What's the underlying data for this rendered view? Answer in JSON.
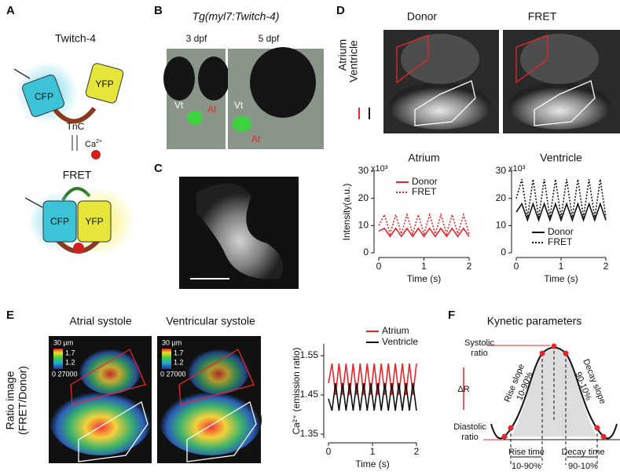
{
  "panels": {
    "a": {
      "letter": "A",
      "title": "Twitch-4",
      "cfp": "CFP",
      "yfp": "YFP",
      "tnc": "TnC",
      "ca": "Ca",
      "ca_sup": "2+",
      "fret": "FRET"
    },
    "b": {
      "letter": "B",
      "title": "Tg(myl7:Twitch-4)",
      "d3": "3 dpf",
      "d5": "5 dpf",
      "vt": "Vt",
      "at": "At"
    },
    "c": {
      "letter": "C"
    },
    "d": {
      "letter": "D",
      "donor": "Donor",
      "fret": "FRET",
      "atrium": "Atrium",
      "ventricle": "Ventricle"
    },
    "e": {
      "letter": "E",
      "atrial": "Atrial systole",
      "ventricular": "Ventricular systole",
      "ratio1": "Ratio image",
      "ratio2": "(FRET/Donor)",
      "scale": "30 µm",
      "cmax": "1.7",
      "cmid": "1.2",
      "crange": "0 27000"
    },
    "f": {
      "letter": "F",
      "title": "Kynetic parameters",
      "systolic": [
        "Systolic",
        "ratio"
      ],
      "dr": "ΔR",
      "diastolic": [
        "Diastolic",
        "ratio"
      ],
      "rise_slope": [
        "Rise slope",
        "10-90%"
      ],
      "decay_slope": [
        "Decay slope",
        "90-10%"
      ],
      "rise_time": [
        "Rise time",
        "10-90%"
      ],
      "decay_time": [
        "Decay time",
        "90-10%"
      ]
    }
  },
  "chart_data": [
    {
      "type": "line",
      "title": "Atrium",
      "y_label": "Intensity(a.u.)",
      "y_multiplier": "x10³",
      "x_label": "Time (s)",
      "x": [
        0,
        0.125,
        0.25,
        0.375,
        0.5,
        0.625,
        0.75,
        0.875,
        1,
        1.125,
        1.25,
        1.375,
        1.5,
        1.625,
        1.75,
        1.875,
        2
      ],
      "series": [
        {
          "name": "Donor",
          "color": "#e8262a",
          "dash": "solid",
          "values": [
            8,
            9,
            6,
            9,
            6,
            9,
            6,
            9,
            6,
            9,
            6,
            9,
            6,
            9,
            6,
            9,
            6
          ]
        },
        {
          "name": "FRET",
          "color": "#e8262a",
          "dash": "dotted",
          "values": [
            10,
            14,
            7,
            14,
            7,
            14,
            7,
            14,
            7,
            14,
            7,
            14,
            7,
            14,
            7,
            14,
            7
          ]
        }
      ],
      "xlim": [
        0,
        2
      ],
      "ylim": [
        0,
        30
      ],
      "xticks": [
        0,
        1,
        2
      ],
      "yticks": [
        0,
        10,
        20,
        30
      ],
      "legend": "upper right"
    },
    {
      "type": "line",
      "title": "Ventricle",
      "y_multiplier": "x10³",
      "x_label": "Time (s)",
      "x": [
        0,
        0.125,
        0.25,
        0.375,
        0.5,
        0.625,
        0.75,
        0.875,
        1,
        1.125,
        1.25,
        1.375,
        1.5,
        1.625,
        1.75,
        1.875,
        2
      ],
      "series": [
        {
          "name": "Donor",
          "color": "#111111",
          "dash": "solid",
          "values": [
            15,
            18,
            12,
            18,
            12,
            18,
            12,
            18,
            12,
            18,
            12,
            18,
            12,
            18,
            12,
            18,
            12
          ]
        },
        {
          "name": "FRET",
          "color": "#111111",
          "dash": "dotted",
          "values": [
            20,
            27,
            13,
            27,
            13,
            27,
            13,
            27,
            13,
            27,
            13,
            27,
            13,
            27,
            13,
            27,
            13
          ]
        }
      ],
      "xlim": [
        0,
        2
      ],
      "ylim": [
        0,
        30
      ],
      "xticks": [
        0,
        1,
        2
      ],
      "yticks": [
        0,
        10,
        20,
        30
      ],
      "legend": "lower right"
    },
    {
      "type": "line",
      "y_label": "Ca²⁺ (emission ratio)",
      "x_label": "Time (s)",
      "x": [
        0,
        0.08,
        0.16,
        0.24,
        0.32,
        0.4,
        0.48,
        0.56,
        0.64,
        0.72,
        0.8,
        0.88,
        0.96,
        1.04,
        1.12,
        1.2,
        1.28,
        1.36,
        1.44,
        1.52,
        1.6,
        1.68,
        1.76,
        1.84,
        1.92,
        2
      ],
      "series": [
        {
          "name": "Atrium",
          "color": "#e8262a",
          "dash": "solid",
          "values": [
            1.48,
            1.53,
            1.45,
            1.53,
            1.45,
            1.53,
            1.45,
            1.53,
            1.45,
            1.53,
            1.45,
            1.53,
            1.45,
            1.53,
            1.45,
            1.53,
            1.45,
            1.53,
            1.45,
            1.53,
            1.45,
            1.53,
            1.45,
            1.53,
            1.45,
            1.53
          ]
        },
        {
          "name": "Ventricle",
          "color": "#111111",
          "dash": "solid",
          "values": [
            1.44,
            1.41,
            1.48,
            1.41,
            1.48,
            1.41,
            1.48,
            1.41,
            1.48,
            1.41,
            1.48,
            1.41,
            1.48,
            1.41,
            1.48,
            1.41,
            1.48,
            1.41,
            1.48,
            1.41,
            1.48,
            1.41,
            1.48,
            1.41,
            1.48,
            1.41
          ]
        }
      ],
      "xlim": [
        0,
        2
      ],
      "ylim": [
        1.34,
        1.58
      ],
      "xticks": [
        0,
        1,
        2
      ],
      "yticks": [
        1.35,
        1.45,
        1.55
      ],
      "legend": "top"
    }
  ]
}
